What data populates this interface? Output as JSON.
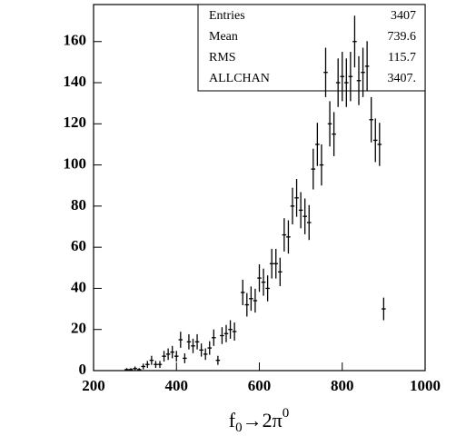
{
  "chart_data": {
    "type": "errorbar",
    "x_label": [
      "f",
      "0",
      "→2π",
      "0"
    ],
    "x": [
      280,
      290,
      300,
      310,
      320,
      330,
      340,
      350,
      360,
      370,
      380,
      390,
      400,
      410,
      420,
      430,
      440,
      450,
      460,
      470,
      480,
      490,
      500,
      510,
      520,
      530,
      540,
      560,
      570,
      580,
      590,
      600,
      610,
      620,
      630,
      640,
      650,
      660,
      670,
      680,
      690,
      700,
      710,
      720,
      730,
      740,
      750,
      760,
      770,
      780,
      790,
      800,
      810,
      820,
      830,
      840,
      850,
      860,
      870,
      880,
      890,
      900
    ],
    "values": [
      0.5,
      0.5,
      1,
      0.5,
      2,
      3,
      5,
      3,
      3,
      7,
      8,
      9,
      7,
      15,
      6,
      14,
      12,
      14,
      10,
      8,
      11,
      16,
      5,
      17,
      18,
      20,
      19,
      38,
      32,
      35,
      34,
      45,
      43,
      40,
      52,
      52,
      48,
      66,
      65,
      80,
      84,
      78,
      75,
      72,
      98,
      110,
      100,
      145,
      120,
      115,
      140,
      143,
      140,
      143,
      160,
      141,
      145,
      148,
      122,
      112,
      110,
      30
    ],
    "errors": [
      0.7,
      0.7,
      1,
      0.7,
      1.4,
      1.7,
      2.2,
      1.7,
      1.7,
      2.6,
      2.8,
      3,
      2.6,
      3.9,
      2.4,
      3.7,
      3.5,
      3.7,
      3.2,
      2.8,
      3.3,
      4,
      2.2,
      4.1,
      4.2,
      4.5,
      4.4,
      6.2,
      5.7,
      5.9,
      5.8,
      6.7,
      6.6,
      6.3,
      7.2,
      7.2,
      6.9,
      8.1,
      8.1,
      8.9,
      9.2,
      8.8,
      8.7,
      8.5,
      9.9,
      10.5,
      10,
      12,
      11,
      10.7,
      11.8,
      12,
      11.8,
      12,
      12.6,
      11.9,
      12,
      12.2,
      11,
      10.6,
      10.5,
      5.5
    ],
    "color": "#000000",
    "xlim": [
      200,
      1000
    ],
    "xticks": [
      200,
      400,
      600,
      800,
      1000
    ],
    "ylim": [
      0,
      178
    ],
    "yticks": [
      0,
      20,
      40,
      60,
      80,
      100,
      120,
      140,
      160
    ],
    "stats": [
      [
        "Entries",
        "3407"
      ],
      [
        "Mean",
        "739.6"
      ],
      [
        "RMS",
        "115.7"
      ],
      [
        "ALLCHAN",
        "3407."
      ]
    ]
  }
}
